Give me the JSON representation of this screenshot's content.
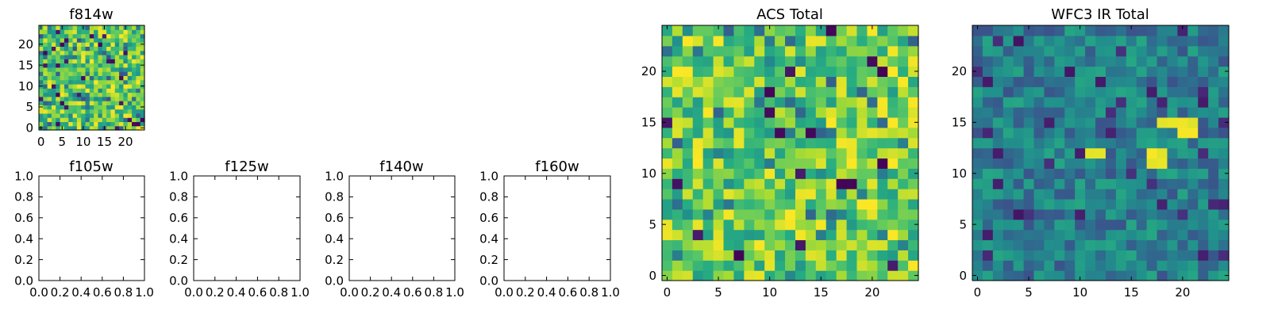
{
  "chart_data": [
    {
      "type": "heatmap",
      "id": "f814w",
      "title": "f814w",
      "colormap": "viridis",
      "grid_size": 25,
      "value_range": [
        0,
        1
      ],
      "xticks": [
        0,
        5,
        10,
        15,
        20
      ],
      "yticks": [
        0,
        5,
        10,
        15,
        20
      ],
      "xlim": [
        -0.5,
        24.5
      ],
      "ylim": [
        -0.5,
        24.5
      ],
      "values": [],
      "note": ""
    },
    {
      "type": "empty",
      "id": "f105w",
      "title": "f105w",
      "xticks": [
        "0.0",
        "0.2",
        "0.4",
        "0.6",
        "0.8",
        "1.0"
      ],
      "yticks": [
        "0.0",
        "0.2",
        "0.4",
        "0.6",
        "0.8",
        "1.0"
      ],
      "xlim": [
        0,
        1
      ],
      "ylim": [
        0,
        1
      ]
    },
    {
      "type": "empty",
      "id": "f125w",
      "title": "f125w",
      "xticks": [
        "0.0",
        "0.2",
        "0.4",
        "0.6",
        "0.8",
        "1.0"
      ],
      "yticks": [
        "0.0",
        "0.2",
        "0.4",
        "0.6",
        "0.8",
        "1.0"
      ],
      "xlim": [
        0,
        1
      ],
      "ylim": [
        0,
        1
      ]
    },
    {
      "type": "empty",
      "id": "f140w",
      "title": "f140w",
      "xticks": [
        "0.0",
        "0.2",
        "0.4",
        "0.6",
        "0.8",
        "1.0"
      ],
      "yticks": [
        "0.0",
        "0.2",
        "0.4",
        "0.6",
        "0.8",
        "1.0"
      ],
      "xlim": [
        0,
        1
      ],
      "ylim": [
        0,
        1
      ]
    },
    {
      "type": "empty",
      "id": "f160w",
      "title": "f160w",
      "xticks": [
        "0.0",
        "0.2",
        "0.4",
        "0.6",
        "0.8",
        "1.0"
      ],
      "yticks": [
        "0.0",
        "0.2",
        "0.4",
        "0.6",
        "0.8",
        "1.0"
      ],
      "xlim": [
        0,
        1
      ],
      "ylim": [
        0,
        1
      ]
    },
    {
      "type": "heatmap",
      "id": "acs_total",
      "title": "ACS Total",
      "colormap": "viridis",
      "grid_size": 25,
      "value_range": [
        0,
        1
      ],
      "xticks": [
        0,
        5,
        10,
        15,
        20
      ],
      "yticks": [
        0,
        5,
        10,
        15,
        20
      ],
      "xlim": [
        -0.5,
        24.5
      ],
      "ylim": [
        -0.5,
        24.5
      ],
      "values": [],
      "note": ""
    },
    {
      "type": "heatmap",
      "id": "wfc3_ir_total",
      "title": "WFC3 IR Total",
      "colormap": "viridis",
      "grid_size": 25,
      "value_range": [
        0,
        1
      ],
      "xticks": [
        0,
        5,
        10,
        15,
        20
      ],
      "yticks": [
        0,
        5,
        10,
        15,
        20
      ],
      "xlim": [
        -0.5,
        24.5
      ],
      "ylim": [
        -0.5,
        24.5
      ],
      "values": [],
      "note": ""
    }
  ]
}
